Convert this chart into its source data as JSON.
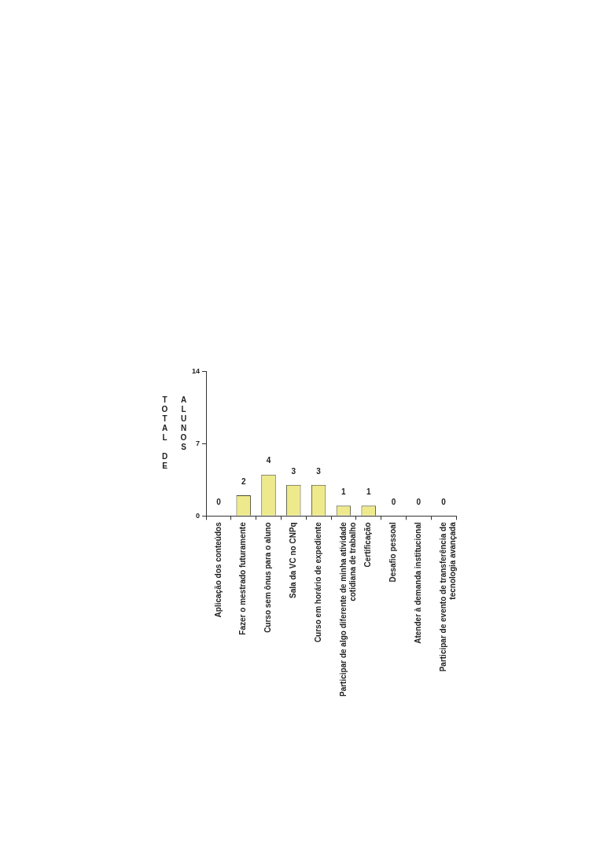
{
  "chart_data": {
    "type": "bar",
    "ylabel": "TOTAL DE ALUNOS",
    "categories": [
      "Aplicação dos conteúdos",
      "Fazer o mestrado futuramente",
      "Curso sem ônus para o aluno",
      "Sala da VC no CNPq",
      "Curso em horário de expediente",
      "Participar de algo diferente de minha atividade cotidiana de trabalho",
      "Certificação",
      "Desafio pessoal",
      "Atender à demanda institucional",
      "Participar de evento de transferência de tecnologia avançada"
    ],
    "values": [
      0,
      2,
      4,
      3,
      3,
      1,
      1,
      0,
      0,
      0
    ],
    "color": "#eeea8c",
    "ylim": [
      0,
      14
    ],
    "yticks": [
      0,
      7,
      14
    ],
    "data_labels": true
  }
}
